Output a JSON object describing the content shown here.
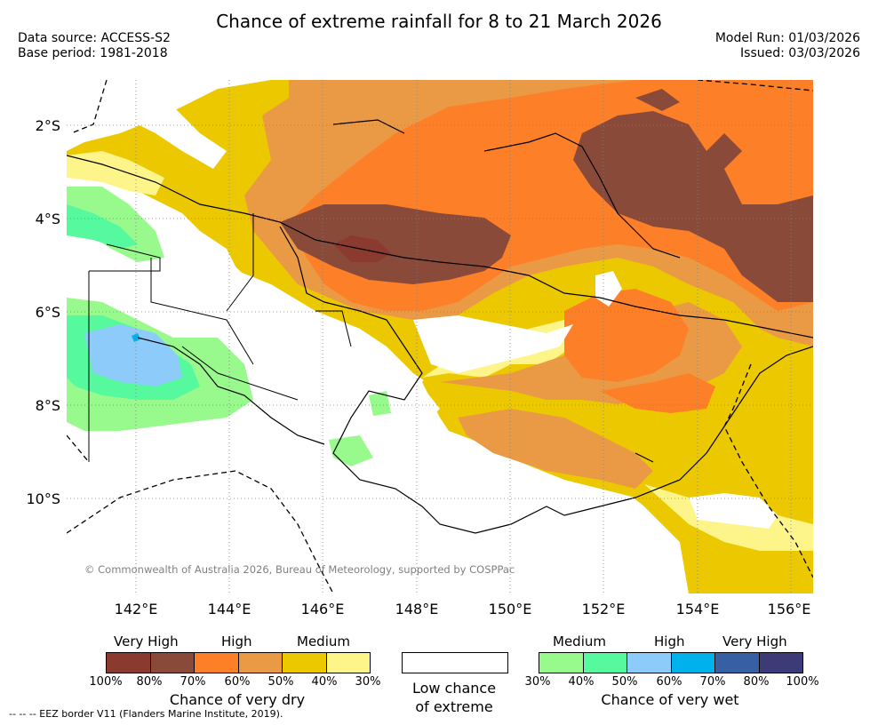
{
  "title": "Chance of extreme rainfall for 8 to 21 March 2026",
  "data_source": "Data source: ACCESS-S2",
  "base_period": "Base period: 1981-2018",
  "model_run": "Model Run: 01/03/2026",
  "issued": "Issued: 03/03/2026",
  "copyright": "© Commonwealth of Australia 2026, Bureau of Meteorology, supported by COSPPac",
  "lat_labels": [
    "2°S",
    "4°S",
    "6°S",
    "8°S",
    "10°S"
  ],
  "lon_labels": [
    "142°E",
    "144°E",
    "146°E",
    "148°E",
    "150°E",
    "152°E",
    "154°E",
    "156°E"
  ],
  "legend": {
    "dry": {
      "headers": [
        "Very High",
        "High",
        "Medium"
      ],
      "colors": [
        "#8b3a30",
        "#8a4a3a",
        "#fd7f27",
        "#ea9a45",
        "#ecc800",
        "#fdf58a"
      ],
      "ticks": [
        "100%",
        "80%",
        "70%",
        "60%",
        "50%",
        "40%",
        "30%"
      ],
      "caption": "Chance of very dry"
    },
    "low": {
      "caption_line1": "Low chance",
      "caption_line2": "of extreme"
    },
    "wet": {
      "headers": [
        "Medium",
        "High",
        "Very High"
      ],
      "colors": [
        "#98f98c",
        "#57f99f",
        "#8ccbfa",
        "#00b2eb",
        "#3660a3",
        "#3d3b77"
      ],
      "ticks": [
        "30%",
        "40%",
        "50%",
        "60%",
        "70%",
        "80%",
        "100%"
      ],
      "caption": "Chance of very wet"
    }
  },
  "footer": "--  --  -- EEZ border V11 (Flanders Marine Institute, 2019)."
}
